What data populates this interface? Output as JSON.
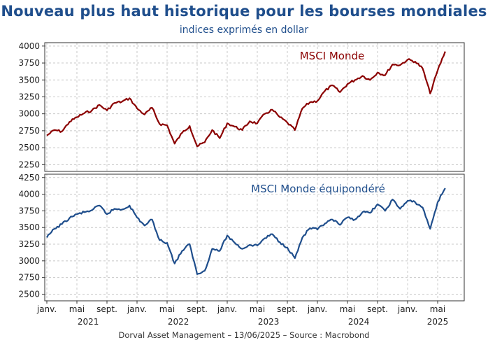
{
  "title": "Nouveau plus haut historique pour les bourses mondiales",
  "subtitle": "indices exprimés en dollar",
  "source": "Dorval Asset Management – 13/06/2025  –   Source : Macrobond",
  "colors": {
    "title": "#1f4e8c",
    "msci_world": "#8b0000",
    "msci_equal_weight": "#1f4e8c",
    "grid": "#c8c8c8"
  },
  "x_axis": {
    "month_labels": [
      "janv.",
      "mai",
      "sept.",
      "janv.",
      "mai",
      "sept.",
      "janv.",
      "mai",
      "sept.",
      "janv.",
      "mai",
      "sept.",
      "janv.",
      "mai"
    ],
    "year_labels": [
      "2021",
      "2022",
      "2023",
      "2024",
      "2025"
    ],
    "range": [
      "2021-01",
      "2025-06"
    ]
  },
  "chart_data": [
    {
      "type": "line",
      "label": "MSCI Monde",
      "ylim": [
        2150,
        4050
      ],
      "yticks": [
        2250,
        2500,
        2750,
        3000,
        3250,
        3500,
        3750,
        4000
      ],
      "grid": true,
      "x": [
        "2021-01",
        "2021-02",
        "2021-03",
        "2021-04",
        "2021-05",
        "2021-06",
        "2021-07",
        "2021-08",
        "2021-09",
        "2021-10",
        "2021-11",
        "2021-12",
        "2022-01",
        "2022-02",
        "2022-03",
        "2022-04",
        "2022-05",
        "2022-06",
        "2022-07",
        "2022-08",
        "2022-09",
        "2022-10",
        "2022-11",
        "2022-12",
        "2023-01",
        "2023-02",
        "2023-03",
        "2023-04",
        "2023-05",
        "2023-06",
        "2023-07",
        "2023-08",
        "2023-09",
        "2023-10",
        "2023-11",
        "2023-12",
        "2024-01",
        "2024-02",
        "2024-03",
        "2024-04",
        "2024-05",
        "2024-06",
        "2024-07",
        "2024-08",
        "2024-09",
        "2024-10",
        "2024-11",
        "2024-12",
        "2025-01",
        "2025-02",
        "2025-03",
        "2025-04",
        "2025-05",
        "2025-06"
      ],
      "series": [
        {
          "name": "MSCI Monde",
          "values": [
            2680,
            2760,
            2740,
            2880,
            2950,
            3010,
            3050,
            3130,
            3050,
            3160,
            3180,
            3230,
            3080,
            2990,
            3090,
            2850,
            2830,
            2560,
            2720,
            2820,
            2520,
            2580,
            2760,
            2640,
            2860,
            2810,
            2760,
            2890,
            2860,
            3000,
            3060,
            2950,
            2870,
            2760,
            3080,
            3170,
            3190,
            3340,
            3420,
            3320,
            3440,
            3500,
            3560,
            3500,
            3610,
            3570,
            3730,
            3720,
            3800,
            3770,
            3670,
            3300,
            3640,
            3920
          ]
        }
      ]
    },
    {
      "type": "line",
      "label": "MSCI Monde équipondéré",
      "ylim": [
        2400,
        4300
      ],
      "yticks": [
        2500,
        2750,
        3000,
        3250,
        3500,
        3750,
        4000,
        4250
      ],
      "grid": true,
      "x": [
        "2021-01",
        "2021-02",
        "2021-03",
        "2021-04",
        "2021-05",
        "2021-06",
        "2021-07",
        "2021-08",
        "2021-09",
        "2021-10",
        "2021-11",
        "2021-12",
        "2022-01",
        "2022-02",
        "2022-03",
        "2022-04",
        "2022-05",
        "2022-06",
        "2022-07",
        "2022-08",
        "2022-09",
        "2022-10",
        "2022-11",
        "2022-12",
        "2023-01",
        "2023-02",
        "2023-03",
        "2023-04",
        "2023-05",
        "2023-06",
        "2023-07",
        "2023-08",
        "2023-09",
        "2023-10",
        "2023-11",
        "2023-12",
        "2024-01",
        "2024-02",
        "2024-03",
        "2024-04",
        "2024-05",
        "2024-06",
        "2024-07",
        "2024-08",
        "2024-09",
        "2024-10",
        "2024-11",
        "2024-12",
        "2025-01",
        "2025-02",
        "2025-03",
        "2025-04",
        "2025-05",
        "2025-06"
      ],
      "series": [
        {
          "name": "MSCI Monde équipondéré",
          "values": [
            3350,
            3480,
            3550,
            3640,
            3700,
            3730,
            3760,
            3830,
            3700,
            3780,
            3770,
            3830,
            3650,
            3530,
            3620,
            3310,
            3270,
            2960,
            3150,
            3250,
            2800,
            2850,
            3180,
            3150,
            3380,
            3270,
            3180,
            3240,
            3230,
            3340,
            3400,
            3280,
            3200,
            3040,
            3350,
            3490,
            3470,
            3560,
            3620,
            3540,
            3650,
            3620,
            3730,
            3720,
            3850,
            3750,
            3920,
            3780,
            3900,
            3880,
            3800,
            3480,
            3880,
            4090
          ]
        }
      ]
    }
  ]
}
